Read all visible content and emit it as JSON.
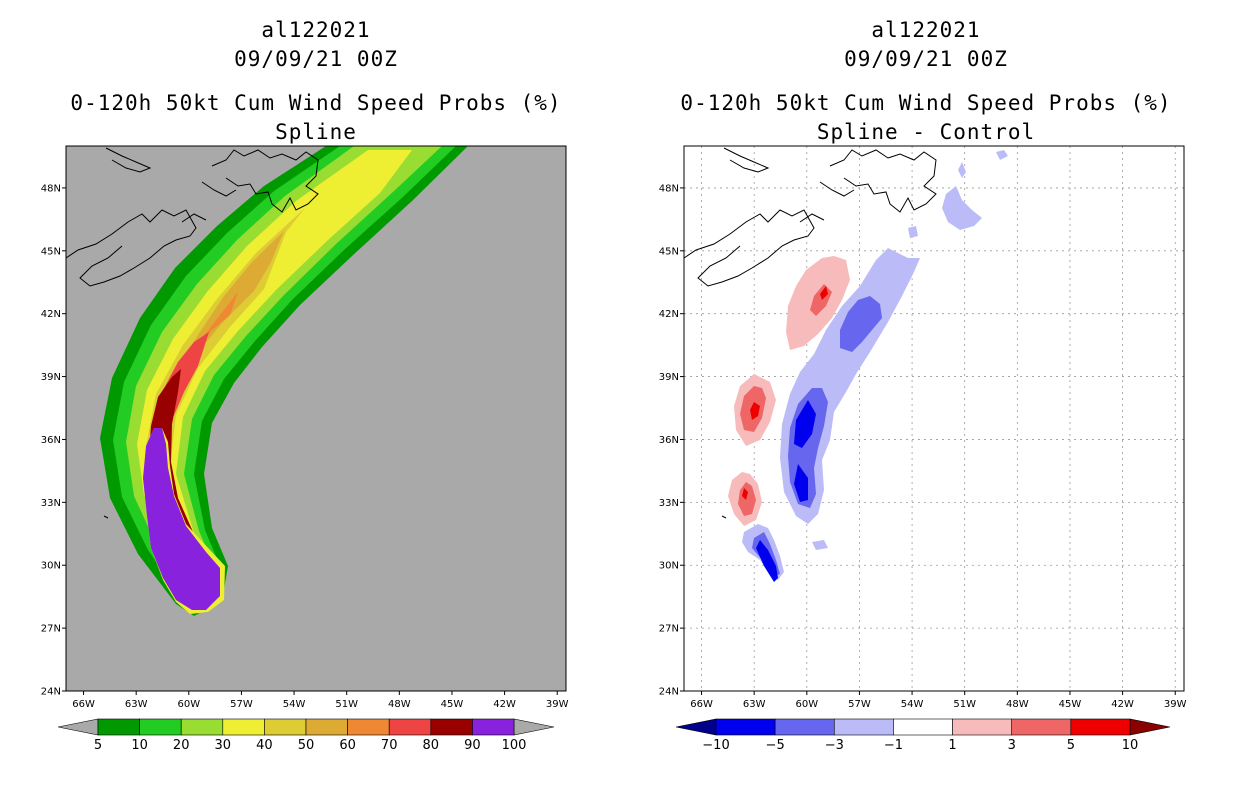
{
  "chart_data": [
    {
      "type": "heatmap",
      "storm_id": "al122021",
      "date": "09/09/21 00Z",
      "title": "0-120h 50kt Cum Wind Speed Probs (%)",
      "subtitle": "Spline",
      "x_ticks": [
        "66W",
        "63W",
        "60W",
        "57W",
        "54W",
        "51W",
        "48W",
        "45W",
        "42W",
        "39W"
      ],
      "y_ticks": [
        "24N",
        "27N",
        "30N",
        "33N",
        "36N",
        "39N",
        "42N",
        "45N",
        "48N"
      ],
      "xlim": [
        -67,
        -38.5
      ],
      "ylim": [
        24,
        50
      ],
      "background_color": "#a9a9a9",
      "colorbar": {
        "levels": [
          "5",
          "10",
          "20",
          "30",
          "40",
          "50",
          "60",
          "70",
          "80",
          "90",
          "100"
        ],
        "colors": [
          "#009900",
          "#22cc22",
          "#99dd33",
          "#eeee33",
          "#ddcc33",
          "#ddaa33",
          "#ee8833",
          "#ee4444",
          "#990000",
          "#8822dd"
        ]
      }
    },
    {
      "type": "heatmap",
      "storm_id": "al122021",
      "date": "09/09/21 00Z",
      "title": "0-120h 50kt Cum Wind Speed Probs (%)",
      "subtitle": "Spline - Control",
      "x_ticks": [
        "66W",
        "63W",
        "60W",
        "57W",
        "54W",
        "51W",
        "48W",
        "45W",
        "42W",
        "39W"
      ],
      "y_ticks": [
        "24N",
        "27N",
        "30N",
        "33N",
        "36N",
        "39N",
        "42N",
        "45N",
        "48N"
      ],
      "xlim": [
        -67,
        -38.5
      ],
      "ylim": [
        24,
        50
      ],
      "background_color": "#ffffff",
      "colorbar": {
        "levels": [
          "-10",
          "-5",
          "-3",
          "-1",
          "1",
          "3",
          "5",
          "10"
        ],
        "colors": [
          "#00008b",
          "#0000ee",
          "#6666ee",
          "#bbbbf7",
          "#ffffff",
          "#f7bbbb",
          "#ee6666",
          "#ee0000",
          "#8b0000"
        ]
      }
    }
  ]
}
